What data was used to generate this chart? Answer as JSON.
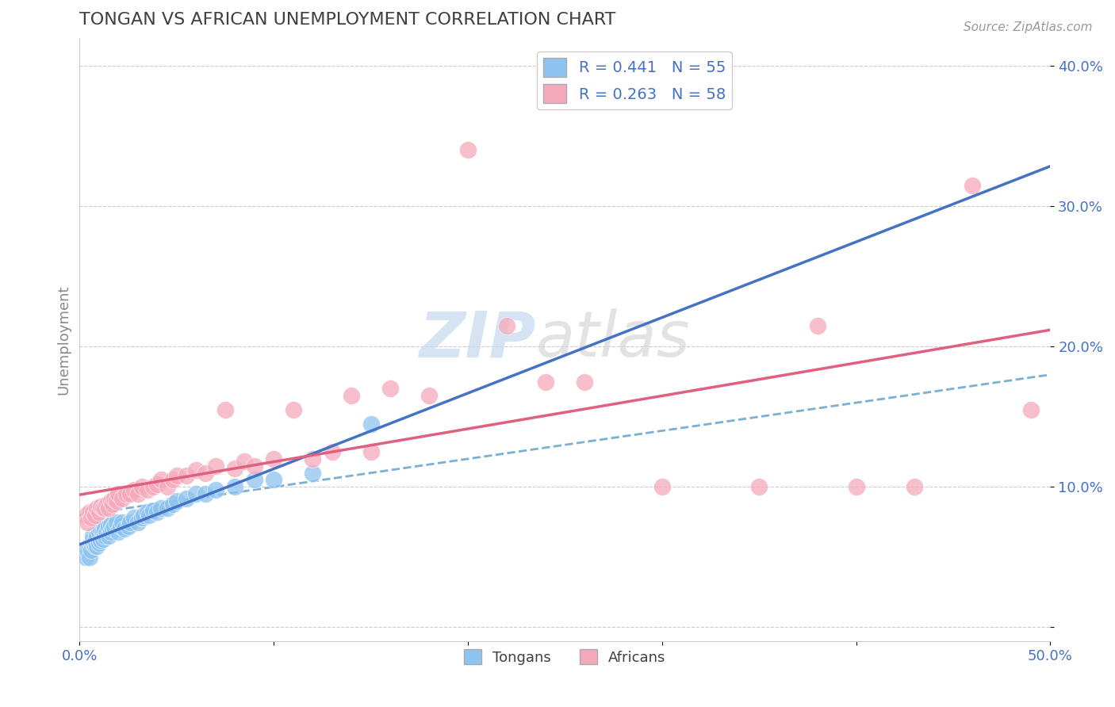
{
  "title": "TONGAN VS AFRICAN UNEMPLOYMENT CORRELATION CHART",
  "source": "Source: ZipAtlas.com",
  "xlabel": "",
  "ylabel": "Unemployment",
  "xlim": [
    0.0,
    0.5
  ],
  "ylim": [
    -0.01,
    0.42
  ],
  "xticks": [
    0.0,
    0.1,
    0.2,
    0.3,
    0.4,
    0.5
  ],
  "yticks": [
    0.0,
    0.1,
    0.2,
    0.3,
    0.4
  ],
  "xticklabels": [
    "0.0%",
    "",
    "",
    "",
    "",
    "50.0%"
  ],
  "yticklabels_right": [
    "",
    "10.0%",
    "20.0%",
    "30.0%",
    "40.0%"
  ],
  "tongan_color": "#8EC4F0",
  "african_color": "#F5AABC",
  "trend_tongan_color": "#4472C4",
  "trend_african_color": "#E06080",
  "trend_dashed_color": "#7BAFD4",
  "background_color": "#FFFFFF",
  "grid_color": "#CCCCCC",
  "title_color": "#404040",
  "label_color": "#4472C4",
  "R_tongan": 0.441,
  "N_tongan": 55,
  "R_african": 0.263,
  "N_african": 58,
  "tongan_x": [
    0.003,
    0.004,
    0.005,
    0.006,
    0.006,
    0.007,
    0.007,
    0.007,
    0.008,
    0.008,
    0.009,
    0.009,
    0.01,
    0.01,
    0.011,
    0.011,
    0.012,
    0.012,
    0.013,
    0.013,
    0.014,
    0.015,
    0.015,
    0.016,
    0.016,
    0.017,
    0.018,
    0.019,
    0.02,
    0.021,
    0.022,
    0.023,
    0.025,
    0.026,
    0.028,
    0.03,
    0.032,
    0.033,
    0.035,
    0.036,
    0.038,
    0.04,
    0.042,
    0.045,
    0.048,
    0.05,
    0.055,
    0.06,
    0.065,
    0.07,
    0.08,
    0.09,
    0.1,
    0.12,
    0.15
  ],
  "tongan_y": [
    0.05,
    0.055,
    0.05,
    0.06,
    0.055,
    0.06,
    0.062,
    0.065,
    0.058,
    0.062,
    0.058,
    0.065,
    0.06,
    0.068,
    0.062,
    0.07,
    0.063,
    0.068,
    0.065,
    0.07,
    0.068,
    0.065,
    0.072,
    0.068,
    0.073,
    0.07,
    0.072,
    0.075,
    0.068,
    0.072,
    0.075,
    0.07,
    0.072,
    0.075,
    0.078,
    0.075,
    0.078,
    0.08,
    0.082,
    0.08,
    0.083,
    0.082,
    0.085,
    0.085,
    0.088,
    0.09,
    0.092,
    0.095,
    0.095,
    0.098,
    0.1,
    0.105,
    0.105,
    0.11,
    0.145
  ],
  "african_x": [
    0.003,
    0.004,
    0.005,
    0.006,
    0.007,
    0.008,
    0.009,
    0.01,
    0.011,
    0.012,
    0.013,
    0.014,
    0.015,
    0.016,
    0.017,
    0.018,
    0.019,
    0.02,
    0.022,
    0.024,
    0.026,
    0.028,
    0.03,
    0.032,
    0.035,
    0.038,
    0.04,
    0.042,
    0.045,
    0.048,
    0.05,
    0.055,
    0.06,
    0.065,
    0.07,
    0.075,
    0.08,
    0.085,
    0.09,
    0.1,
    0.11,
    0.12,
    0.13,
    0.14,
    0.15,
    0.16,
    0.18,
    0.2,
    0.22,
    0.24,
    0.26,
    0.3,
    0.35,
    0.38,
    0.4,
    0.43,
    0.46,
    0.49
  ],
  "african_y": [
    0.08,
    0.075,
    0.082,
    0.078,
    0.082,
    0.08,
    0.085,
    0.082,
    0.086,
    0.085,
    0.085,
    0.088,
    0.085,
    0.09,
    0.088,
    0.092,
    0.09,
    0.095,
    0.092,
    0.095,
    0.095,
    0.098,
    0.095,
    0.1,
    0.098,
    0.1,
    0.102,
    0.105,
    0.1,
    0.105,
    0.108,
    0.108,
    0.112,
    0.11,
    0.115,
    0.155,
    0.113,
    0.118,
    0.115,
    0.12,
    0.155,
    0.12,
    0.125,
    0.165,
    0.125,
    0.17,
    0.165,
    0.34,
    0.215,
    0.175,
    0.175,
    0.1,
    0.1,
    0.215,
    0.1,
    0.1,
    0.315,
    0.155
  ],
  "watermark_zip": "ZIP",
  "watermark_atlas": "atlas",
  "legend_tongan_label": "Tongans",
  "legend_african_label": "Africans"
}
